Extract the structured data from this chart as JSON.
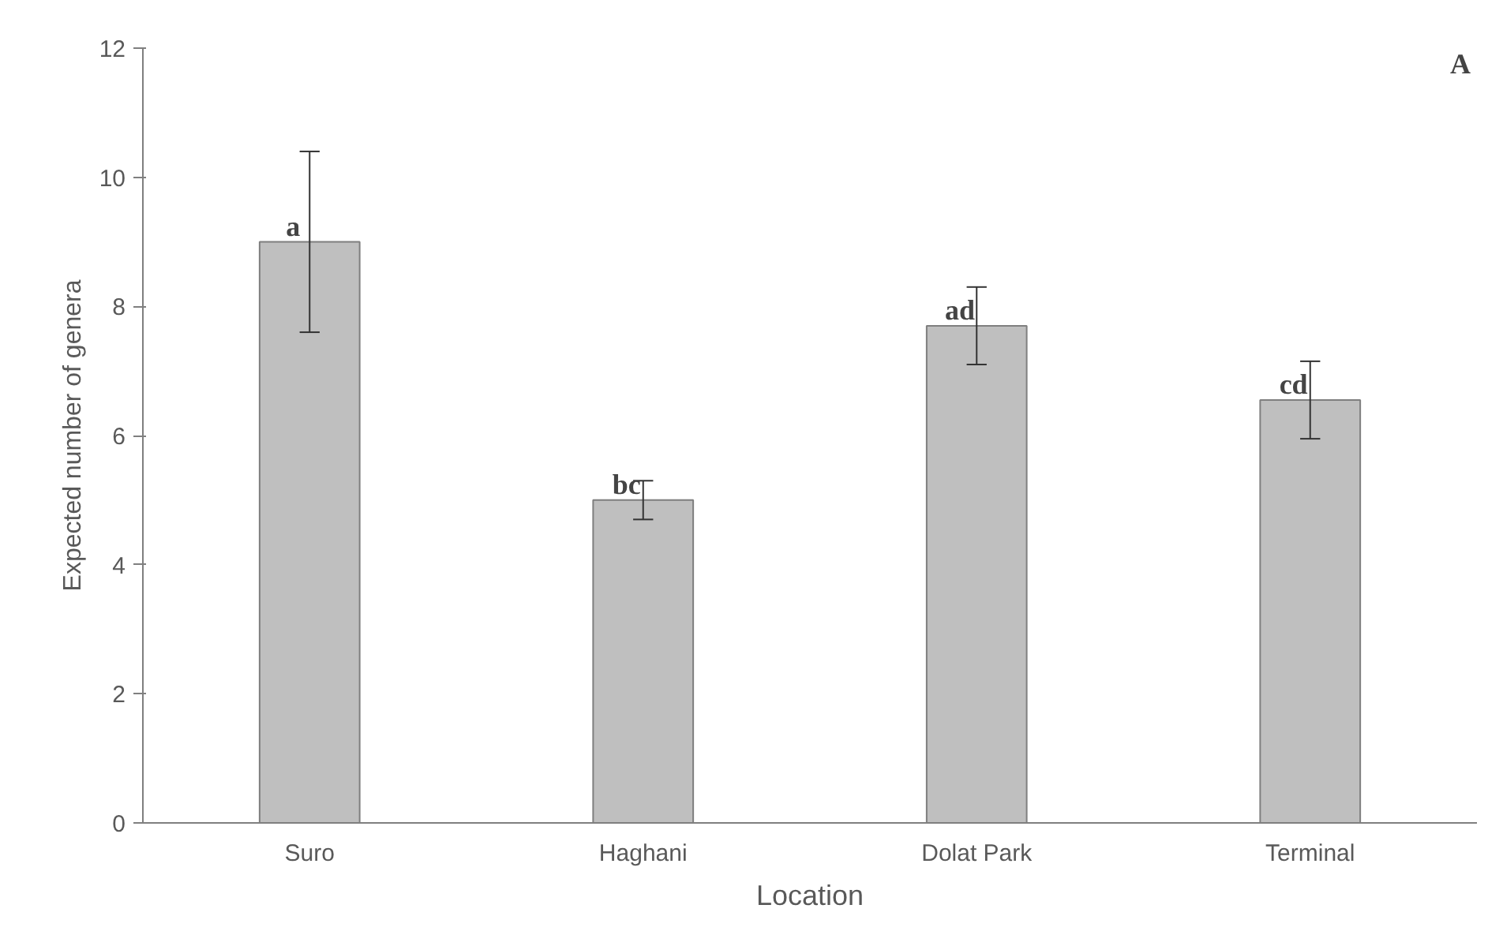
{
  "chart_data": {
    "type": "bar",
    "xlabel": "Location",
    "ylabel": "Expected number of genera",
    "categories": [
      "Suro",
      "Haghani",
      "Dolat Park",
      "Terminal"
    ],
    "values": [
      9.0,
      5.0,
      7.7,
      6.55
    ],
    "errors": [
      1.4,
      0.3,
      0.6,
      0.6
    ],
    "color": "#bfbfbf",
    "ylim": [
      0,
      12
    ],
    "yticks": [
      0,
      2,
      4,
      6,
      8,
      10,
      12
    ],
    "grid": false,
    "annotations": [
      {
        "text": "a",
        "x": "Suro",
        "y": 9.0
      },
      {
        "text": "bc",
        "x": "Haghani",
        "y": 5.0
      },
      {
        "text": "ad",
        "x": "Dolat Park",
        "y": 7.7
      },
      {
        "text": "cd",
        "x": "Terminal",
        "y": 6.55
      },
      "A"
    ]
  }
}
